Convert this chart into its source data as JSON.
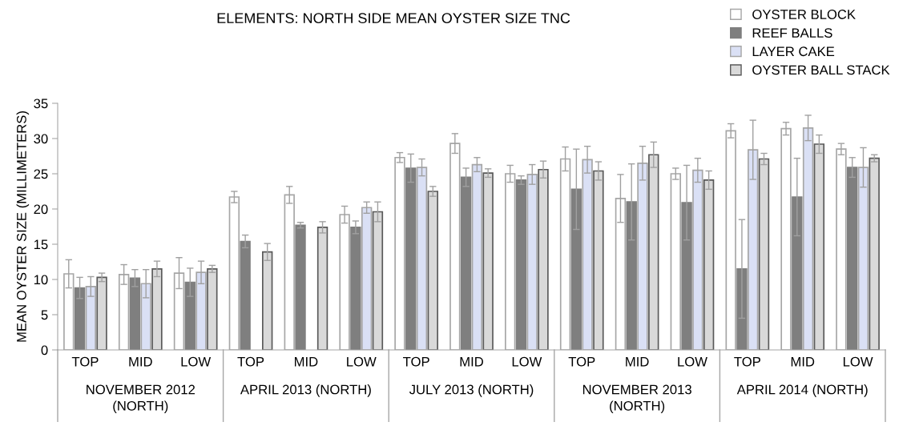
{
  "chart_data": {
    "type": "bar",
    "title": "ELEMENTS: NORTH SIDE MEAN OYSTER SIZE TNC",
    "ylabel": "MEAN OYSTER SIZE (MILLIMETERS)",
    "categories": [
      "TOP",
      "MID",
      "LOW",
      "TOP",
      "MID",
      "LOW",
      "TOP",
      "MID",
      "LOW",
      "TOP",
      "MID",
      "LOW",
      "TOP",
      "MID",
      "LOW"
    ],
    "annotations": [
      "NOVEMBER 2012\n(NORTH)",
      "APRIL 2013 (NORTH)",
      "JULY 2013 (NORTH)",
      "NOVEMBER 2013\n(NORTH)",
      "APRIL 2014 (NORTH)"
    ],
    "series": [
      {
        "name": "OYSTER BLOCK",
        "color": "#ffffff",
        "values": [
          10.8,
          10.7,
          10.9,
          21.7,
          22.0,
          19.2,
          27.3,
          29.3,
          25.0,
          27.1,
          21.5,
          25.0,
          31.1,
          31.4,
          28.5
        ],
        "errors": [
          2.0,
          1.4,
          2.2,
          0.8,
          1.2,
          1.2,
          0.7,
          1.4,
          1.2,
          1.7,
          3.4,
          0.8,
          1.0,
          0.9,
          0.8
        ]
      },
      {
        "name": "REEF BALLS",
        "color": "#7f7f7f",
        "values": [
          8.8,
          10.2,
          9.6,
          15.4,
          17.7,
          17.4,
          25.8,
          24.5,
          24.1,
          22.8,
          21.0,
          20.9,
          11.5,
          21.7,
          25.9
        ],
        "errors": [
          1.5,
          1.2,
          2.0,
          0.9,
          0.4,
          0.9,
          2.0,
          1.3,
          0.6,
          5.7,
          5.4,
          5.3,
          7.0,
          5.5,
          1.4
        ]
      },
      {
        "name": "LAYER CAKE",
        "color": "#dae0f5",
        "values": [
          9.0,
          9.4,
          11.0,
          null,
          null,
          20.2,
          25.9,
          26.3,
          24.9,
          27.0,
          26.5,
          25.5,
          28.4,
          31.5,
          25.9
        ],
        "errors": [
          1.4,
          2.0,
          1.6,
          null,
          null,
          0.8,
          1.2,
          1.0,
          1.4,
          1.9,
          2.4,
          1.7,
          4.2,
          1.8,
          2.8
        ]
      },
      {
        "name": "OYSTER BALL STACK",
        "color": "#d9d9d9",
        "values": [
          10.3,
          11.5,
          11.5,
          13.9,
          17.4,
          19.6,
          22.5,
          25.1,
          25.6,
          25.4,
          27.7,
          24.1,
          27.1,
          29.2,
          27.2
        ],
        "errors": [
          0.6,
          1.1,
          0.5,
          1.2,
          0.8,
          1.4,
          0.7,
          0.6,
          1.2,
          1.3,
          1.8,
          1.3,
          0.8,
          1.3,
          0.5
        ]
      }
    ],
    "ylim": [
      0,
      35
    ],
    "yticks": [
      0,
      5,
      10,
      15,
      20,
      25,
      30,
      35
    ],
    "grid": false,
    "legend": "top right"
  }
}
